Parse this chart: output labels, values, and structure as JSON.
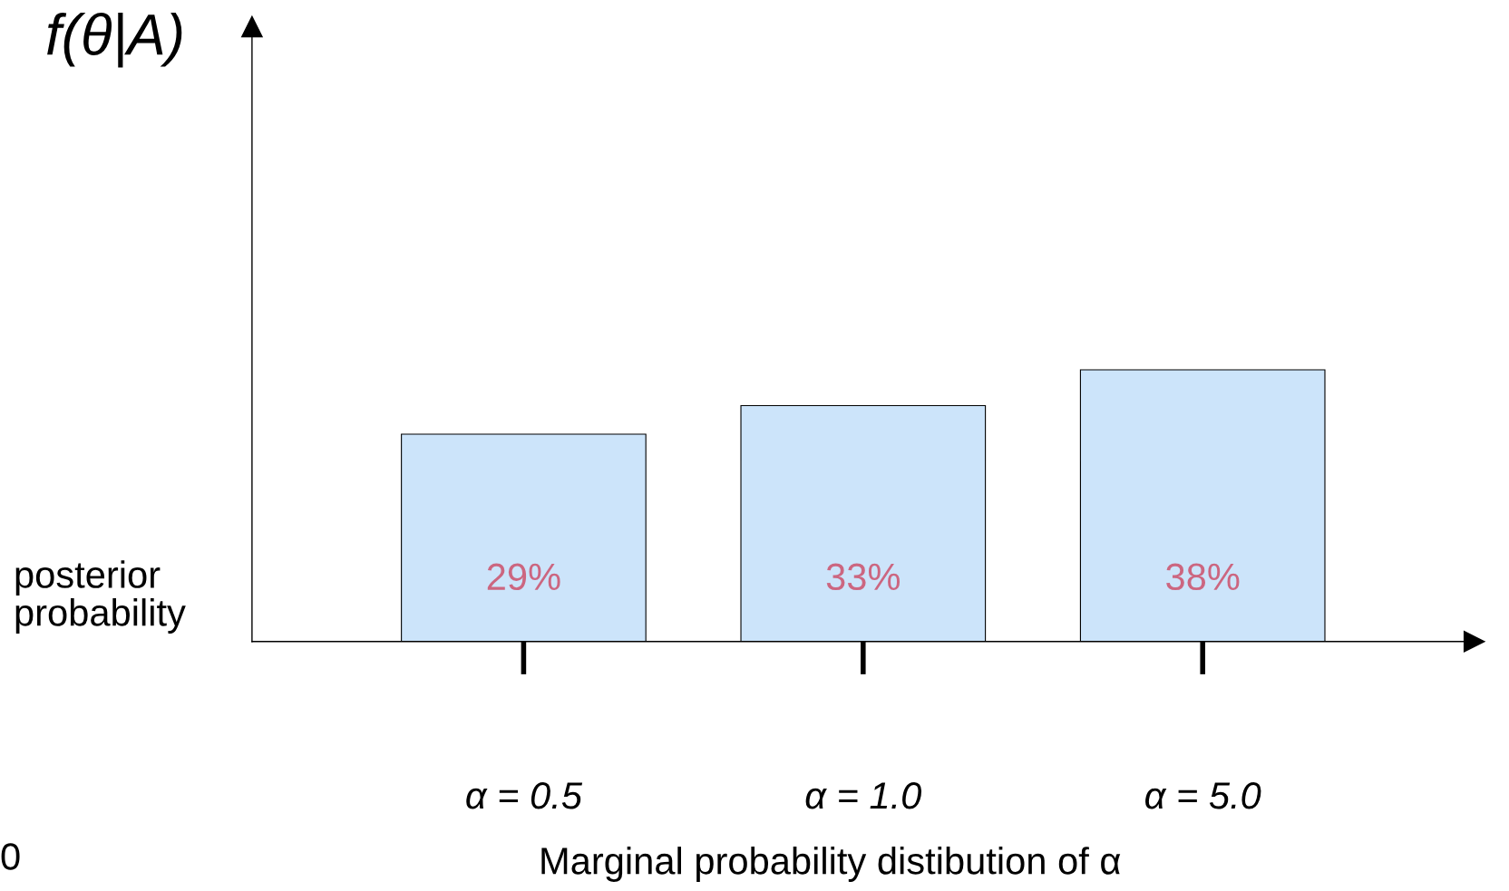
{
  "chart_data": {
    "type": "bar",
    "ylabel": "f(θ|A)",
    "xlabel": "Marginal probability distibution of α",
    "categories": [
      "α = 0.5",
      "α = 1.0",
      "α = 5.0"
    ],
    "values": [
      29,
      33,
      38
    ],
    "value_labels": [
      "29%",
      "33%",
      "38%"
    ],
    "color": "#cce4fa",
    "ylim": [
      0,
      86
    ],
    "tick_labels": "x",
    "grid": false,
    "legend": false,
    "annotations": [
      "posterior probability",
      "0"
    ]
  }
}
